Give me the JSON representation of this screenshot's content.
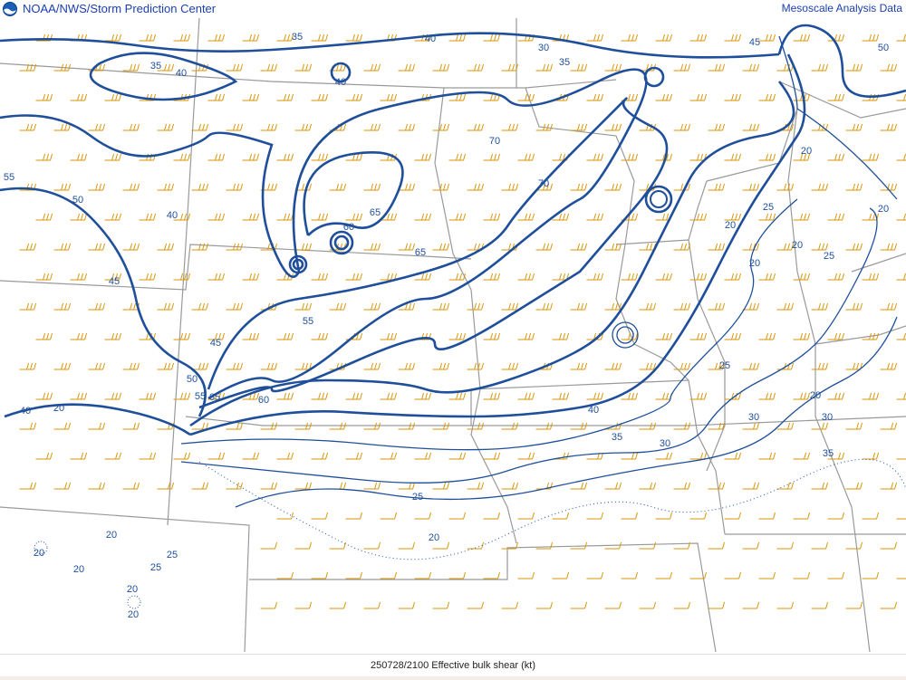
{
  "header": {
    "left_title": "NOAA/NWS/Storm Prediction Center",
    "right_title": "Mesoscale Analysis Data",
    "logo": "noaa-logo-icon"
  },
  "footer": {
    "caption": "250728/2100 Effective bulk shear (kt)"
  },
  "map": {
    "field": "Effective bulk shear",
    "units": "kt",
    "contour_color": "#1f4f9a",
    "barb_color": "#d9960a",
    "border_color": "#9a9a9a",
    "contour_labels": [
      "35",
      "40",
      "30",
      "35",
      "45",
      "50",
      "35",
      "40",
      "40",
      "55",
      "50",
      "40",
      "70",
      "70",
      "60",
      "65",
      "65",
      "45",
      "20",
      "20",
      "25",
      "20",
      "20",
      "20",
      "40",
      "50",
      "55",
      "65",
      "60",
      "45",
      "40",
      "35",
      "30",
      "25",
      "20",
      "55",
      "25",
      "30",
      "35",
      "20",
      "30",
      "25",
      "20",
      "20",
      "25",
      "20",
      "25",
      "20",
      "20",
      "20"
    ]
  }
}
